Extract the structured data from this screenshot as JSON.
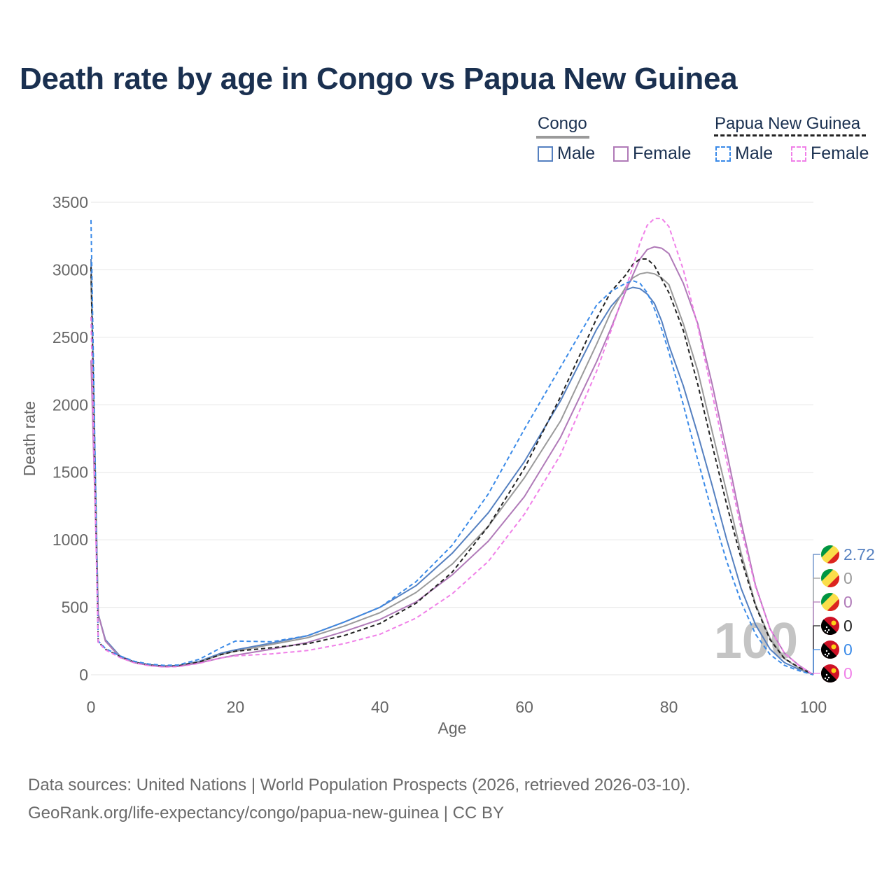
{
  "title": "Death rate by age in Congo vs Papua New Guinea",
  "legend": {
    "groups": [
      {
        "name": "Congo",
        "line_style": "solid",
        "line_color": "#9a9a9a"
      },
      {
        "name": "Papua New Guinea",
        "line_style": "dashed",
        "line_color": "#222222"
      }
    ],
    "items": [
      {
        "group": "Congo",
        "label": "Male",
        "color": "#5580c0",
        "style": "solid"
      },
      {
        "group": "Congo",
        "label": "Female",
        "color": "#b07ab8",
        "style": "solid"
      },
      {
        "group": "Papua New Guinea",
        "label": "Male",
        "color": "#3a8ae8",
        "style": "dashed"
      },
      {
        "group": "Papua New Guinea",
        "label": "Female",
        "color": "#f080e8",
        "style": "dashed"
      }
    ]
  },
  "footer": {
    "line1": "Data sources: United Nations | World Population Prospects (2026, retrieved 2026-03-10).",
    "line2": "GeoRank.org/life-expectancy/congo/papua-new-guinea | CC BY"
  },
  "chart_data": {
    "type": "line",
    "xlabel": "Age",
    "ylabel": "Death rate",
    "xlim": [
      0,
      100
    ],
    "ylim": [
      0,
      3500
    ],
    "x_ticks": [
      0,
      20,
      40,
      60,
      80,
      100
    ],
    "y_ticks": [
      0,
      500,
      1000,
      1500,
      2000,
      2500,
      3000,
      3500
    ],
    "grid": true,
    "year_watermark": "100",
    "x": [
      0,
      1,
      2,
      4,
      6,
      8,
      10,
      12,
      15,
      18,
      20,
      25,
      30,
      35,
      40,
      45,
      50,
      55,
      60,
      65,
      70,
      72,
      74,
      75,
      76,
      77,
      78,
      79,
      80,
      82,
      84,
      86,
      88,
      90,
      92,
      94,
      96,
      98,
      100
    ],
    "series": [
      {
        "name": "Congo Male",
        "country": "Congo",
        "sex": "Male",
        "color": "#5580c0",
        "style": "solid",
        "values": [
          3080,
          450,
          260,
          140,
          95,
          75,
          65,
          68,
          100,
          160,
          185,
          235,
          290,
          390,
          500,
          660,
          900,
          1200,
          1580,
          2030,
          2560,
          2730,
          2850,
          2870,
          2860,
          2820,
          2750,
          2620,
          2440,
          2140,
          1780,
          1400,
          1000,
          640,
          370,
          190,
          90,
          40,
          2.72
        ],
        "end_label": "2.72"
      },
      {
        "name": "Congo Total",
        "country": "Congo",
        "sex": "Total",
        "color": "#9a9a9a",
        "style": "solid",
        "values": [
          2950,
          450,
          250,
          135,
          92,
          72,
          63,
          66,
          95,
          150,
          175,
          225,
          275,
          360,
          460,
          610,
          820,
          1100,
          1460,
          1880,
          2450,
          2690,
          2870,
          2940,
          2970,
          2980,
          2970,
          2940,
          2890,
          2600,
          2250,
          1800,
          1350,
          900,
          520,
          270,
          120,
          50,
          0
        ],
        "end_label": "0"
      },
      {
        "name": "Congo Female",
        "country": "Congo",
        "sex": "Female",
        "color": "#b07ab8",
        "style": "solid",
        "values": [
          2330,
          450,
          250,
          130,
          90,
          70,
          60,
          62,
          88,
          125,
          145,
          190,
          240,
          320,
          410,
          540,
          740,
          990,
          1320,
          1760,
          2320,
          2570,
          2840,
          2960,
          3080,
          3150,
          3170,
          3160,
          3120,
          2900,
          2600,
          2150,
          1650,
          1130,
          660,
          340,
          160,
          70,
          0
        ],
        "end_label": "0"
      },
      {
        "name": "Papua New Guinea Total",
        "country": "Papua New Guinea",
        "sex": "Total",
        "color": "#222222",
        "style": "dashed",
        "values": [
          3020,
          245,
          190,
          135,
          92,
          72,
          63,
          65,
          95,
          150,
          175,
          200,
          230,
          290,
          380,
          530,
          760,
          1100,
          1530,
          2060,
          2640,
          2840,
          2960,
          3040,
          3080,
          3080,
          3030,
          2930,
          2830,
          2550,
          2150,
          1700,
          1260,
          860,
          510,
          260,
          120,
          55,
          0
        ],
        "end_label": "0"
      },
      {
        "name": "Papua New Guinea Male",
        "country": "Papua New Guinea",
        "sex": "Male",
        "color": "#3a8ae8",
        "style": "dashed",
        "values": [
          3370,
          250,
          195,
          140,
          100,
          80,
          70,
          72,
          115,
          200,
          250,
          245,
          290,
          390,
          500,
          690,
          960,
          1340,
          1820,
          2280,
          2740,
          2840,
          2900,
          2920,
          2900,
          2830,
          2710,
          2560,
          2390,
          2000,
          1590,
          1200,
          840,
          540,
          300,
          150,
          70,
          30,
          0
        ],
        "end_label": "0"
      },
      {
        "name": "Papua New Guinea Female",
        "country": "Papua New Guinea",
        "sex": "Female",
        "color": "#f080e8",
        "style": "dashed",
        "values": [
          2650,
          240,
          185,
          128,
          88,
          68,
          58,
          60,
          85,
          125,
          140,
          155,
          180,
          230,
          300,
          420,
          600,
          840,
          1190,
          1630,
          2250,
          2550,
          2860,
          3020,
          3200,
          3330,
          3380,
          3380,
          3320,
          3000,
          2580,
          2080,
          1580,
          1080,
          650,
          340,
          160,
          70,
          0
        ],
        "end_label": "0"
      }
    ],
    "end_markers": [
      {
        "series": "Congo Male",
        "flag": "congo-flag",
        "value": "2.72"
      },
      {
        "series": "Congo Total",
        "flag": "congo-flag",
        "value": "0"
      },
      {
        "series": "Congo Female",
        "flag": "congo-flag",
        "value": "0"
      },
      {
        "series": "Papua New Guinea Total",
        "flag": "papua-new-guinea-flag",
        "value": "0"
      },
      {
        "series": "Papua New Guinea Male",
        "flag": "papua-new-guinea-flag",
        "value": "0"
      },
      {
        "series": "Papua New Guinea Female",
        "flag": "papua-new-guinea-flag",
        "value": "0"
      }
    ]
  }
}
